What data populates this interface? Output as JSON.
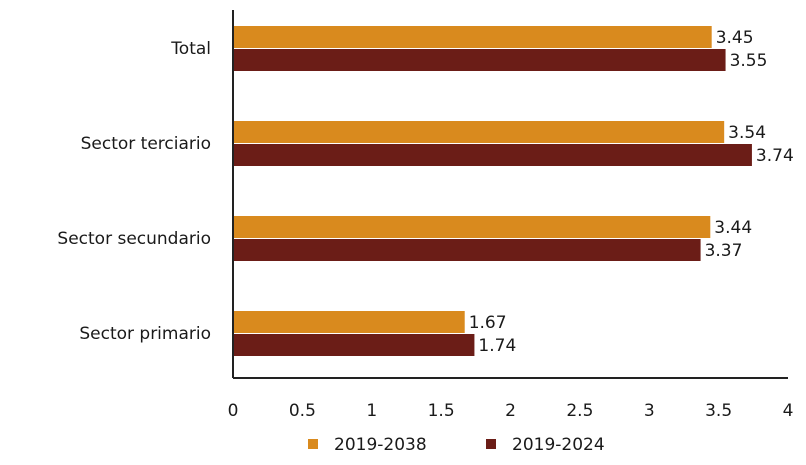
{
  "chart_data": {
    "type": "bar",
    "orientation": "horizontal",
    "categories": [
      "Total",
      "Sector terciario",
      "Sector secundario",
      "Sector primario"
    ],
    "series": [
      {
        "name": "2019-2038",
        "values": [
          3.45,
          3.54,
          3.44,
          1.67
        ],
        "value_labels": [
          "3.45",
          "3.54",
          "3.44",
          "1.67"
        ],
        "color": "#d98a1e"
      },
      {
        "name": "2019-2024",
        "values": [
          3.55,
          3.74,
          3.37,
          1.74
        ],
        "value_labels": [
          "3.55",
          "3.74",
          "3.37",
          "1.74"
        ],
        "color": "#6b1d17"
      }
    ],
    "xlim": [
      0,
      4
    ],
    "x_ticks": [
      0,
      0.5,
      1,
      1.5,
      2,
      2.5,
      3,
      3.5,
      4
    ],
    "x_tick_labels": [
      "0",
      "0.5",
      "1",
      "1.5",
      "2",
      "2.5",
      "3",
      "3.5",
      "4"
    ],
    "grid": false,
    "legend_position": "bottom"
  }
}
